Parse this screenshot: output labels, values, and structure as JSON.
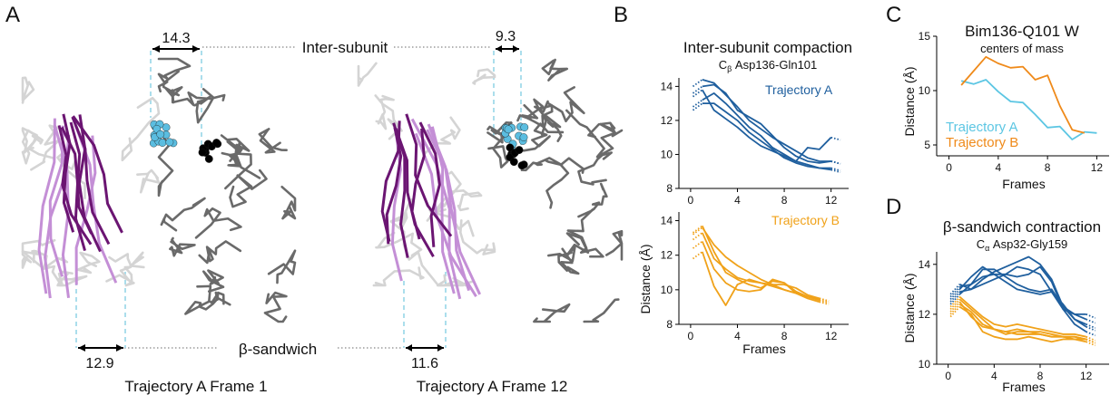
{
  "panels": {
    "A": {
      "letter": "A",
      "top_label": "Inter-subunit",
      "bottom_label": "β-sandwich",
      "frame1": {
        "caption": "Trajectory A Frame 1",
        "top_distance": "14.3",
        "bottom_distance": "12.9"
      },
      "frame12": {
        "caption": "Trajectory A Frame 12",
        "top_distance": "9.3",
        "bottom_distance": "11.6"
      }
    },
    "B": {
      "letter": "B",
      "title": "Inter-subunit compaction",
      "subtitle_prefix": "C",
      "subtitle_sub": "β",
      "subtitle_rest": " Asp136-Gln101",
      "ylabel": "Distance (Å)",
      "xlabel": "Frames"
    },
    "C": {
      "letter": "C",
      "title": "Bim136-Q101 W",
      "subtitle": "centers of mass",
      "ylabel": "Distance (Å)",
      "xlabel": "Frames"
    },
    "D": {
      "letter": "D",
      "title": "β-sandwich contraction",
      "subtitle_prefix": "C",
      "subtitle_sub": "α",
      "subtitle_rest": " Asp32-Gly159",
      "ylabel": "Distance (Å)",
      "xlabel": "Frames"
    }
  },
  "colors": {
    "trajectory_a": "#1f5f9e",
    "trajectory_b": "#f0a21a",
    "trajectory_a_light": "#5cc6e3",
    "trajectory_b_dark": "#ef8a1a",
    "purple_dark": "#6b1572",
    "purple_light": "#c48fd6",
    "protein_gray": "#6a6a6a",
    "protein_light": "#d4d4d4",
    "sphere_blue": "#5bbde0"
  },
  "chart_data": [
    {
      "panel": "B-top",
      "type": "line",
      "legend": "Trajectory A",
      "xlim": [
        -1,
        13.5
      ],
      "ylim": [
        8,
        14.5
      ],
      "xticks": [
        0,
        4,
        8,
        12
      ],
      "yticks": [
        8,
        10,
        12,
        14
      ],
      "series": [
        {
          "x": [
            1,
            2,
            3,
            4,
            5,
            6,
            7,
            8,
            9,
            10,
            11,
            12
          ],
          "y": [
            14.4,
            14.2,
            13.5,
            12.8,
            12.0,
            11.5,
            11.0,
            10.6,
            10.2,
            9.8,
            9.6,
            9.6
          ]
        },
        {
          "x": [
            1,
            2,
            3,
            4,
            5,
            6,
            7,
            8,
            9,
            10,
            11,
            12
          ],
          "y": [
            14.0,
            14.1,
            13.6,
            12.6,
            12.2,
            11.8,
            11.1,
            10.4,
            9.9,
            9.6,
            9.5,
            9.6
          ]
        },
        {
          "x": [
            1,
            2,
            3,
            4,
            5,
            6,
            7,
            8,
            9,
            10,
            11,
            12
          ],
          "y": [
            13.2,
            13.6,
            13.0,
            12.3,
            11.6,
            11.1,
            10.4,
            10.0,
            9.6,
            9.4,
            9.2,
            9.2
          ]
        },
        {
          "x": [
            1,
            2,
            3,
            4,
            5,
            6,
            7,
            8,
            9,
            10,
            11,
            12
          ],
          "y": [
            13.0,
            13.0,
            12.5,
            12.0,
            11.3,
            10.8,
            10.3,
            9.8,
            9.5,
            9.3,
            9.2,
            9.1
          ]
        },
        {
          "x": [
            1,
            2,
            3,
            4,
            5,
            6,
            7,
            8,
            9,
            10,
            11,
            12
          ],
          "y": [
            13.8,
            12.6,
            12.1,
            11.6,
            11.0,
            10.5,
            10.2,
            9.9,
            9.6,
            10.4,
            10.3,
            11.0
          ]
        }
      ]
    },
    {
      "panel": "B-bottom",
      "type": "line",
      "legend": "Trajectory B",
      "xlim": [
        -1,
        13.5
      ],
      "ylim": [
        8,
        14.5
      ],
      "xticks": [
        0,
        4,
        8,
        12
      ],
      "yticks": [
        8,
        10,
        12,
        14
      ],
      "series": [
        {
          "x": [
            1,
            2,
            3,
            4,
            5,
            6,
            7,
            8,
            9,
            10,
            11
          ],
          "y": [
            13.6,
            12.6,
            11.9,
            11.4,
            11.0,
            10.6,
            10.3,
            10.0,
            9.8,
            9.6,
            9.5
          ]
        },
        {
          "x": [
            1,
            2,
            3,
            4,
            5,
            6,
            7,
            8,
            9,
            10,
            11
          ],
          "y": [
            13.3,
            11.8,
            11.2,
            10.7,
            10.5,
            10.4,
            10.3,
            10.3,
            10.1,
            9.7,
            9.5
          ]
        },
        {
          "x": [
            1,
            2,
            3,
            4,
            5,
            6,
            7,
            8,
            9,
            10,
            11
          ],
          "y": [
            12.8,
            11.2,
            10.4,
            10.0,
            9.9,
            10.0,
            10.6,
            10.4,
            9.8,
            9.5,
            9.3
          ]
        },
        {
          "x": [
            1,
            2,
            3,
            4,
            5,
            6,
            7,
            8,
            9,
            10,
            11
          ],
          "y": [
            12.2,
            10.2,
            9.1,
            10.3,
            10.6,
            10.4,
            10.2,
            10.0,
            9.8,
            9.6,
            9.4
          ]
        },
        {
          "x": [
            1,
            2,
            3,
            4,
            5,
            6,
            7,
            8,
            9,
            10,
            11
          ],
          "y": [
            13.7,
            12.2,
            11.0,
            10.6,
            10.3,
            10.1,
            10.5,
            10.4,
            9.9,
            9.6,
            9.4
          ]
        }
      ]
    },
    {
      "panel": "C",
      "type": "line",
      "xlim": [
        -1,
        13
      ],
      "ylim": [
        4,
        15
      ],
      "xticks": [
        0,
        4,
        8,
        12
      ],
      "yticks": [
        5,
        10,
        15
      ],
      "series": [
        {
          "name": "Trajectory A",
          "x": [
            1,
            2,
            3,
            4,
            5,
            6,
            7,
            8,
            9,
            10,
            11,
            12
          ],
          "y": [
            10.9,
            10.6,
            11.0,
            9.9,
            9.0,
            8.9,
            7.8,
            6.6,
            6.7,
            5.5,
            6.2,
            6.1
          ]
        },
        {
          "name": "Trajectory B",
          "x": [
            1,
            2,
            3,
            4,
            5,
            6,
            7,
            8,
            9,
            10,
            11
          ],
          "y": [
            10.5,
            11.8,
            13.1,
            12.5,
            12.1,
            12.2,
            11.0,
            11.4,
            8.6,
            6.4,
            6.1
          ]
        }
      ]
    },
    {
      "panel": "D",
      "type": "line",
      "xlim": [
        -1,
        14
      ],
      "ylim": [
        10,
        14.5
      ],
      "xticks": [
        0,
        4,
        8,
        12
      ],
      "yticks": [
        10,
        12,
        14
      ],
      "series": [
        {
          "name": "Trajectory A",
          "x": [
            1,
            2,
            3,
            4,
            5,
            6,
            7,
            8,
            9,
            10,
            11,
            12
          ],
          "y": [
            12.9,
            13.0,
            13.4,
            13.7,
            13.9,
            14.1,
            14.3,
            14.0,
            13.4,
            12.3,
            12.0,
            11.8
          ]
        },
        {
          "name": "Trajectory A",
          "x": [
            1,
            2,
            3,
            4,
            5,
            6,
            7,
            8,
            9,
            10,
            11,
            12
          ],
          "y": [
            12.8,
            13.2,
            13.5,
            13.6,
            13.6,
            13.5,
            13.6,
            13.9,
            13.3,
            12.2,
            12.0,
            12.0
          ]
        },
        {
          "name": "Trajectory A",
          "x": [
            1,
            2,
            3,
            4,
            5,
            6,
            7,
            8,
            9,
            10,
            11,
            12
          ],
          "y": [
            13.1,
            13.2,
            13.8,
            13.8,
            13.5,
            13.2,
            13.0,
            12.9,
            13.0,
            12.3,
            11.8,
            11.5
          ]
        },
        {
          "name": "Trajectory A",
          "x": [
            1,
            2,
            3,
            4,
            5,
            6,
            7,
            8,
            9,
            10,
            11,
            12
          ],
          "y": [
            13.0,
            13.5,
            13.9,
            13.6,
            13.3,
            13.0,
            12.9,
            12.8,
            12.9,
            12.2,
            11.6,
            11.3
          ]
        },
        {
          "name": "Trajectory A",
          "x": [
            1,
            2,
            3,
            4,
            5,
            6,
            7,
            8,
            9,
            10,
            11,
            12
          ],
          "y": [
            13.2,
            13.0,
            13.2,
            13.4,
            13.6,
            13.9,
            13.8,
            13.6,
            12.9,
            12.4,
            11.8,
            11.6
          ]
        },
        {
          "name": "Trajectory B",
          "x": [
            1,
            2,
            3,
            4,
            5,
            6,
            7,
            8,
            9,
            10,
            11,
            12
          ],
          "y": [
            12.4,
            12.1,
            11.6,
            11.4,
            11.2,
            11.3,
            11.3,
            11.2,
            11.1,
            11.1,
            11.1,
            11.0
          ]
        },
        {
          "name": "Trajectory B",
          "x": [
            1,
            2,
            3,
            4,
            5,
            6,
            7,
            8,
            9,
            10,
            11,
            12
          ],
          "y": [
            12.7,
            12.3,
            11.9,
            11.6,
            11.5,
            11.6,
            11.5,
            11.4,
            11.3,
            11.2,
            11.2,
            11.1
          ]
        },
        {
          "name": "Trajectory B",
          "x": [
            1,
            2,
            3,
            4,
            5,
            6,
            7,
            8,
            9,
            10,
            11,
            12
          ],
          "y": [
            12.5,
            11.9,
            11.5,
            11.4,
            11.3,
            11.2,
            11.2,
            11.2,
            11.1,
            11.1,
            11.0,
            11.0
          ]
        },
        {
          "name": "Trajectory B",
          "x": [
            1,
            2,
            3,
            4,
            5,
            6,
            7,
            8,
            9,
            10,
            11,
            12
          ],
          "y": [
            12.3,
            12.0,
            11.3,
            11.1,
            11.0,
            11.0,
            11.1,
            11.0,
            10.9,
            11.0,
            11.0,
            10.9
          ]
        },
        {
          "name": "Trajectory B",
          "x": [
            1,
            2,
            3,
            4,
            5,
            6,
            7,
            8,
            9,
            10,
            11,
            12
          ],
          "y": [
            12.6,
            12.2,
            11.8,
            11.4,
            11.3,
            11.4,
            11.3,
            11.3,
            11.2,
            11.1,
            11.1,
            11.0
          ]
        }
      ]
    }
  ]
}
